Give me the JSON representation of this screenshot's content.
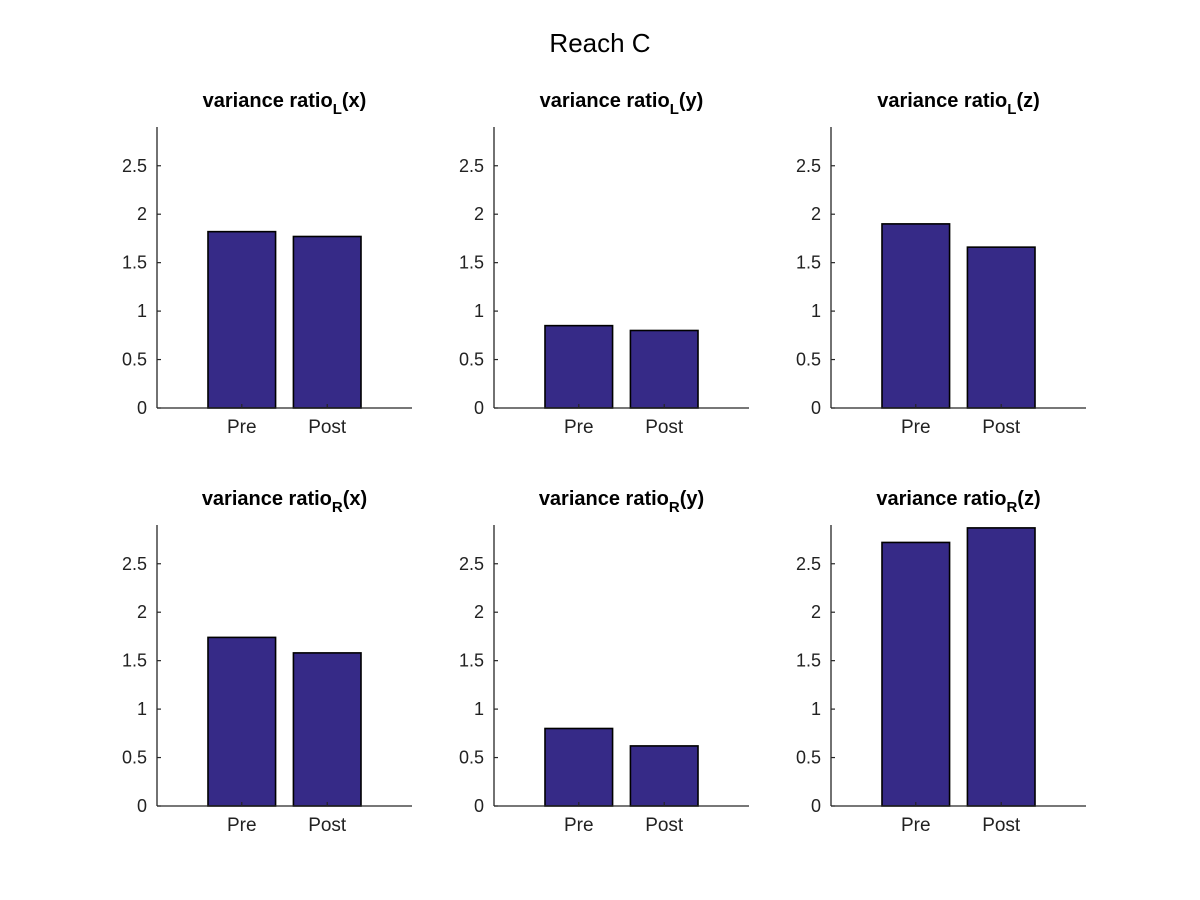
{
  "figure": {
    "title": "Reach C"
  },
  "colors": {
    "bar_fill": "#362a87",
    "bar_edge": "#000000",
    "axis": "#262626"
  },
  "chart_data": [
    {
      "type": "bar",
      "title": {
        "base": "variance ratio",
        "sub": "L",
        "suffix": "(x)"
      },
      "categories": [
        "Pre",
        "Post"
      ],
      "values": [
        1.82,
        1.77
      ],
      "ylim": [
        0,
        2.9
      ],
      "yticks": [
        0,
        0.5,
        1,
        1.5,
        2,
        2.5
      ],
      "ytick_labels": [
        "0",
        "0.5",
        "1",
        "1.5",
        "2",
        "2.5"
      ],
      "grid": false
    },
    {
      "type": "bar",
      "title": {
        "base": "variance ratio",
        "sub": "L",
        "suffix": "(y)"
      },
      "categories": [
        "Pre",
        "Post"
      ],
      "values": [
        0.85,
        0.8
      ],
      "ylim": [
        0,
        2.9
      ],
      "yticks": [
        0,
        0.5,
        1,
        1.5,
        2,
        2.5
      ],
      "ytick_labels": [
        "0",
        "0.5",
        "1",
        "1.5",
        "2",
        "2.5"
      ],
      "grid": false
    },
    {
      "type": "bar",
      "title": {
        "base": "variance ratio",
        "sub": "L",
        "suffix": "(z)"
      },
      "categories": [
        "Pre",
        "Post"
      ],
      "values": [
        1.9,
        1.66
      ],
      "ylim": [
        0,
        2.9
      ],
      "yticks": [
        0,
        0.5,
        1,
        1.5,
        2,
        2.5
      ],
      "ytick_labels": [
        "0",
        "0.5",
        "1",
        "1.5",
        "2",
        "2.5"
      ],
      "grid": false
    },
    {
      "type": "bar",
      "title": {
        "base": "variance ratio",
        "sub": "R",
        "suffix": "(x)"
      },
      "categories": [
        "Pre",
        "Post"
      ],
      "values": [
        1.74,
        1.58
      ],
      "ylim": [
        0,
        2.9
      ],
      "yticks": [
        0,
        0.5,
        1,
        1.5,
        2,
        2.5
      ],
      "ytick_labels": [
        "0",
        "0.5",
        "1",
        "1.5",
        "2",
        "2.5"
      ],
      "grid": false
    },
    {
      "type": "bar",
      "title": {
        "base": "variance ratio",
        "sub": "R",
        "suffix": "(y)"
      },
      "categories": [
        "Pre",
        "Post"
      ],
      "values": [
        0.8,
        0.62
      ],
      "ylim": [
        0,
        2.9
      ],
      "yticks": [
        0,
        0.5,
        1,
        1.5,
        2,
        2.5
      ],
      "ytick_labels": [
        "0",
        "0.5",
        "1",
        "1.5",
        "2",
        "2.5"
      ],
      "grid": false
    },
    {
      "type": "bar",
      "title": {
        "base": "variance ratio",
        "sub": "R",
        "suffix": "(z)"
      },
      "categories": [
        "Pre",
        "Post"
      ],
      "values": [
        2.72,
        2.87
      ],
      "ylim": [
        0,
        2.9
      ],
      "yticks": [
        0,
        0.5,
        1,
        1.5,
        2,
        2.5
      ],
      "ytick_labels": [
        "0",
        "0.5",
        "1",
        "1.5",
        "2",
        "2.5"
      ],
      "grid": false
    }
  ]
}
